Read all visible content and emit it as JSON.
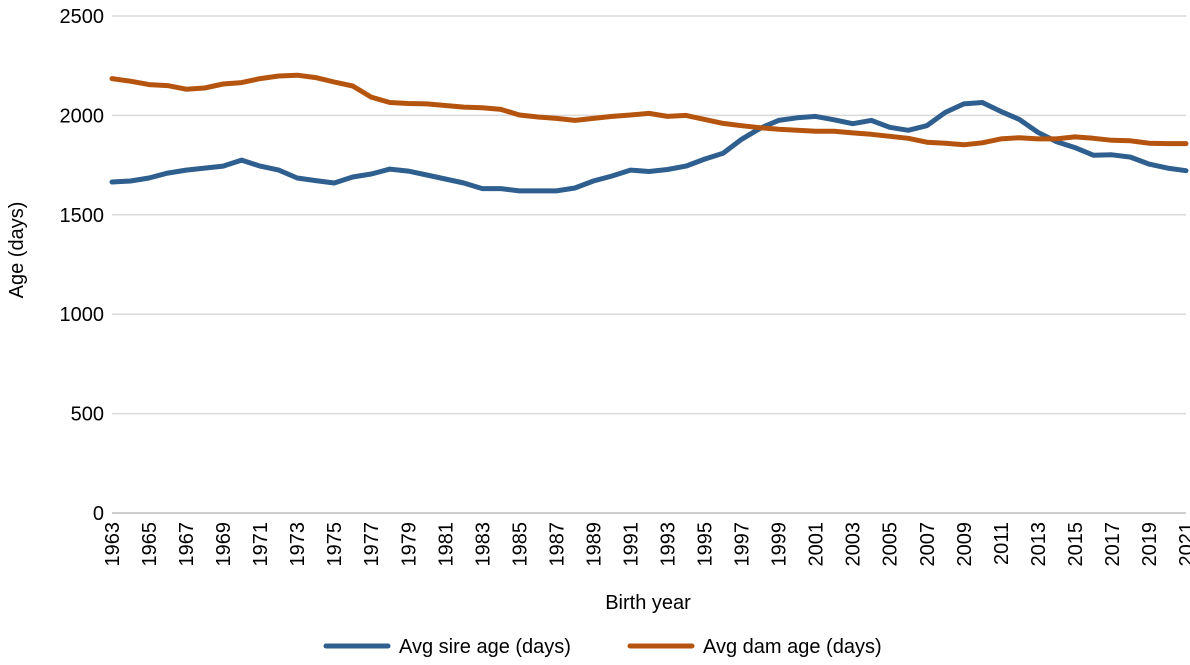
{
  "chart_data": {
    "type": "line",
    "title": "",
    "xlabel": "Birth year",
    "ylabel": "Age (days)",
    "ylim": [
      0,
      2500
    ],
    "yticks": [
      0,
      500,
      1000,
      1500,
      2000,
      2500
    ],
    "grid": "horizontal",
    "legend_position": "bottom",
    "x": [
      1963,
      1964,
      1965,
      1966,
      1967,
      1968,
      1969,
      1970,
      1971,
      1972,
      1973,
      1974,
      1975,
      1976,
      1977,
      1978,
      1979,
      1980,
      1981,
      1982,
      1983,
      1984,
      1985,
      1986,
      1987,
      1988,
      1989,
      1990,
      1991,
      1992,
      1993,
      1994,
      1995,
      1996,
      1997,
      1998,
      1999,
      2000,
      2001,
      2002,
      2003,
      2004,
      2005,
      2006,
      2007,
      2008,
      2009,
      2010,
      2011,
      2012,
      2013,
      2014,
      2015,
      2016,
      2017,
      2018,
      2019,
      2020,
      2021
    ],
    "xtick_labels": [
      "1963",
      "1965",
      "1967",
      "1969",
      "1971",
      "1973",
      "1975",
      "1977",
      "1979",
      "1981",
      "1983",
      "1985",
      "1987",
      "1989",
      "1991",
      "1993",
      "1995",
      "1997",
      "1999",
      "2001",
      "2003",
      "2005",
      "2007",
      "2009",
      "2011",
      "2013",
      "2015",
      "2017",
      "2019",
      "2021"
    ],
    "series": [
      {
        "name": "Avg sire age (days)",
        "color": "#2E5F8E",
        "values": [
          1665,
          1670,
          1685,
          1710,
          1725,
          1735,
          1745,
          1775,
          1745,
          1725,
          1685,
          1672,
          1660,
          1690,
          1705,
          1730,
          1720,
          1700,
          1680,
          1660,
          1632,
          1632,
          1620,
          1620,
          1620,
          1635,
          1670,
          1695,
          1725,
          1718,
          1728,
          1745,
          1780,
          1810,
          1880,
          1935,
          1975,
          1988,
          1995,
          1978,
          1958,
          1975,
          1940,
          1925,
          1948,
          2015,
          2058,
          2065,
          2020,
          1980,
          1915,
          1868,
          1838,
          1800,
          1802,
          1790,
          1755,
          1735,
          1722
        ]
      },
      {
        "name": "Avg dam age (days)",
        "color": "#B5540F",
        "values": [
          2185,
          2172,
          2155,
          2150,
          2132,
          2138,
          2158,
          2165,
          2185,
          2198,
          2202,
          2190,
          2168,
          2148,
          2092,
          2065,
          2060,
          2058,
          2050,
          2042,
          2038,
          2030,
          2002,
          1992,
          1985,
          1975,
          1985,
          1995,
          2002,
          2010,
          1995,
          2000,
          1980,
          1960,
          1948,
          1938,
          1930,
          1925,
          1920,
          1920,
          1912,
          1905,
          1895,
          1885,
          1865,
          1860,
          1852,
          1862,
          1882,
          1888,
          1882,
          1882,
          1892,
          1885,
          1875,
          1872,
          1860,
          1858,
          1858
        ]
      }
    ]
  }
}
